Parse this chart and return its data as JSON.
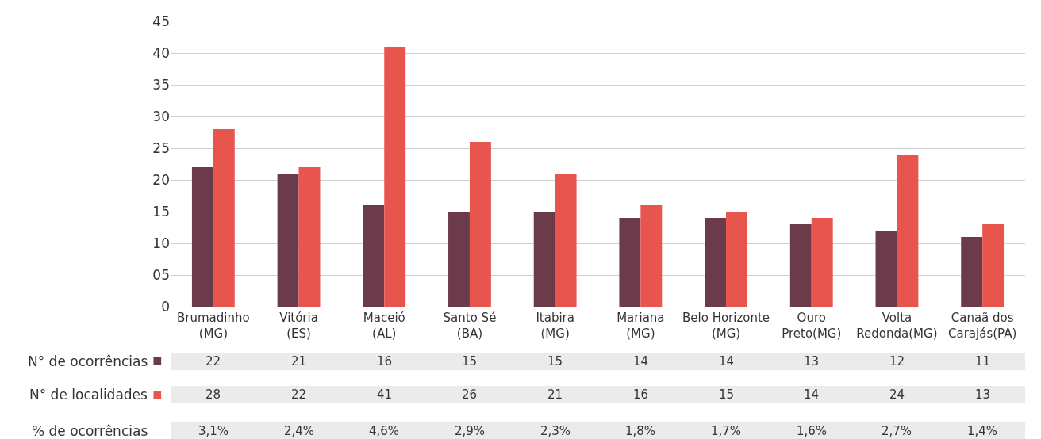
{
  "chart_data": {
    "type": "bar",
    "categories": [
      "Brumadinho\n(MG)",
      "Vitória\n(ES)",
      "Maceió\n(AL)",
      "Santo Sé\n(BA)",
      "Itabira\n(MG)",
      "Mariana\n(MG)",
      "Belo Horizonte\n(MG)",
      "Ouro\nPreto(MG)",
      "Volta\nRedonda(MG)",
      "Canaã dos\nCarajás(PA)"
    ],
    "series": [
      {
        "name": "N° de ocorrências",
        "color": "#6b3a4b",
        "values": [
          22,
          21,
          16,
          15,
          15,
          14,
          14,
          13,
          12,
          11
        ]
      },
      {
        "name": "N° de localidades",
        "color": "#e8554e",
        "values": [
          28,
          22,
          41,
          26,
          21,
          16,
          15,
          14,
          24,
          13
        ]
      }
    ],
    "ylim": [
      0,
      45
    ],
    "yticks": [
      0,
      {
        "value": 5,
        "label": "05"
      },
      10,
      15,
      20,
      25,
      30,
      35,
      40,
      45
    ],
    "grid": "y",
    "legend": "bottom left",
    "data_labels": true,
    "annotations": [
      "% de ocorrências",
      "3,1%",
      "2,4%",
      "4,6%",
      "2,9%",
      "2,3%",
      "1,8%",
      "1,7%",
      "1,6%",
      "2,7%",
      "1,4%"
    ]
  }
}
